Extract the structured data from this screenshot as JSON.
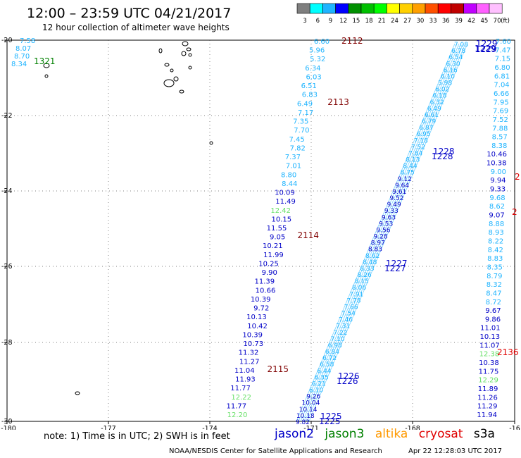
{
  "header": {
    "title": "12:00 – 23:59 UTC 04/21/2017",
    "subtitle": "12 hour collection of altimeter wave heights"
  },
  "colorbar": {
    "unit": "(ft)",
    "ticks": [
      "3",
      "6",
      "9",
      "12",
      "15",
      "18",
      "21",
      "24",
      "27",
      "30",
      "33",
      "36",
      "39",
      "42",
      "45",
      "70"
    ],
    "colors": [
      "#7f7f7f",
      "#00ffff",
      "#1fb4ff",
      "#0000ff",
      "#009000",
      "#00c000",
      "#00ff00",
      "#ffff00",
      "#ffd000",
      "#ffa000",
      "#ff5000",
      "#ff0000",
      "#c00000",
      "#c000ff",
      "#ff60ff",
      "#ffc0ff"
    ]
  },
  "axes": {
    "x_ticks": [
      "-180",
      "-177",
      "-174",
      "-171",
      "-168",
      "-16"
    ],
    "y_ticks": [
      "-20",
      "-22",
      "-24",
      "-26",
      "-28",
      "-30"
    ]
  },
  "colors": {
    "jason2": "#0000c8",
    "jason3": "#008000",
    "altika": "#ff9900",
    "cryosat": "#e00000",
    "s3a": "#000000",
    "cyan": "#1fb4ff",
    "maroon": "#800000",
    "lightgreen": "#66e066"
  },
  "tracks": {
    "track_2112_2115": {
      "labels": [
        {
          "id": "2112",
          "color": "#800000"
        },
        {
          "id": "2113",
          "color": "#800000"
        },
        {
          "id": "2114",
          "color": "#800000"
        },
        {
          "id": "2115",
          "color": "#800000"
        }
      ],
      "values": [
        {
          "v": "6.60",
          "c": "#1fb4ff"
        },
        {
          "v": "5.96",
          "c": "#1fb4ff"
        },
        {
          "v": "5.32",
          "c": "#1fb4ff"
        },
        {
          "v": "6.34",
          "c": "#1fb4ff"
        },
        {
          "v": "6.03",
          "c": "#1fb4ff"
        },
        {
          "v": "6.51",
          "c": "#1fb4ff"
        },
        {
          "v": "6.83",
          "c": "#1fb4ff"
        },
        {
          "v": "6.49",
          "c": "#1fb4ff"
        },
        {
          "v": "7.17",
          "c": "#1fb4ff"
        },
        {
          "v": "7.35",
          "c": "#1fb4ff"
        },
        {
          "v": "7.70",
          "c": "#1fb4ff"
        },
        {
          "v": "7.45",
          "c": "#1fb4ff"
        },
        {
          "v": "7.82",
          "c": "#1fb4ff"
        },
        {
          "v": "7.37",
          "c": "#1fb4ff"
        },
        {
          "v": "7.01",
          "c": "#1fb4ff"
        },
        {
          "v": "8.80",
          "c": "#1fb4ff"
        },
        {
          "v": "8.44",
          "c": "#1fb4ff"
        },
        {
          "v": "10.09",
          "c": "#0000c8"
        },
        {
          "v": "11.49",
          "c": "#0000c8"
        },
        {
          "v": "12.42",
          "c": "#66e066"
        },
        {
          "v": "10.15",
          "c": "#0000c8"
        },
        {
          "v": "11.55",
          "c": "#0000c8"
        },
        {
          "v": "9.05",
          "c": "#0000c8"
        },
        {
          "v": "10.21",
          "c": "#0000c8"
        },
        {
          "v": "11.99",
          "c": "#0000c8"
        },
        {
          "v": "10.25",
          "c": "#0000c8"
        },
        {
          "v": "9.90",
          "c": "#0000c8"
        },
        {
          "v": "11.39",
          "c": "#0000c8"
        },
        {
          "v": "10.66",
          "c": "#0000c8"
        },
        {
          "v": "10.39",
          "c": "#0000c8"
        },
        {
          "v": "9.72",
          "c": "#0000c8"
        },
        {
          "v": "10.13",
          "c": "#0000c8"
        },
        {
          "v": "10.42",
          "c": "#0000c8"
        },
        {
          "v": "10.39",
          "c": "#0000c8"
        },
        {
          "v": "10.73",
          "c": "#0000c8"
        },
        {
          "v": "11.32",
          "c": "#0000c8"
        },
        {
          "v": "11.27",
          "c": "#0000c8"
        },
        {
          "v": "11.04",
          "c": "#0000c8"
        },
        {
          "v": "11.93",
          "c": "#0000c8"
        },
        {
          "v": "11.77",
          "c": "#0000c8"
        },
        {
          "v": "12.22",
          "c": "#66e066"
        },
        {
          "v": "11.77",
          "c": "#0000c8"
        },
        {
          "v": "12.20",
          "c": "#66e066"
        }
      ]
    },
    "track_1229_1225": {
      "labels": [
        "1229",
        "1228",
        "1227",
        "1226",
        "1225"
      ],
      "values": [
        "7.08",
        "6.78",
        "6.54",
        "6.30",
        "6.16",
        "6.10",
        "5.98",
        "6.02",
        "6.18",
        "6.32",
        "6.49",
        "6.61",
        "6.79",
        "6.87",
        "6.95",
        "7.18",
        "7.52",
        "7.84",
        "8.13",
        "8.44",
        "8.75",
        "9.12",
        "9.64",
        "9.61",
        "9.52",
        "9.49",
        "9.33",
        "9.63",
        "9.53",
        "9.56",
        "9.28",
        "8.97",
        "8.83",
        "8.62",
        "8.48",
        "8.33",
        "8.26",
        "8.15",
        "8.06",
        "7.91",
        "7.78",
        "7.66",
        "7.54",
        "7.46",
        "7.31",
        "7.22",
        "7.10",
        "6.98",
        "6.84",
        "6.72",
        "6.58",
        "6.44",
        "6.35",
        "6.21",
        "6.10",
        "9.26",
        "10.04",
        "10.14",
        "10.18",
        "9.82"
      ]
    },
    "track_east": {
      "labels": [
        {
          "id": "1229",
          "color": "#0000c8"
        },
        {
          "id": "2136",
          "color": "#e00000"
        }
      ],
      "values": [
        {
          "v": "7.60",
          "c": "#1fb4ff"
        },
        {
          "v": "7.47",
          "c": "#1fb4ff"
        },
        {
          "v": "7.15",
          "c": "#1fb4ff"
        },
        {
          "v": "6.80",
          "c": "#1fb4ff"
        },
        {
          "v": "6.81",
          "c": "#1fb4ff"
        },
        {
          "v": "7.04",
          "c": "#1fb4ff"
        },
        {
          "v": "6.66",
          "c": "#1fb4ff"
        },
        {
          "v": "7.95",
          "c": "#1fb4ff"
        },
        {
          "v": "7.69",
          "c": "#1fb4ff"
        },
        {
          "v": "7.52",
          "c": "#1fb4ff"
        },
        {
          "v": "7.88",
          "c": "#1fb4ff"
        },
        {
          "v": "8.57",
          "c": "#1fb4ff"
        },
        {
          "v": "8.38",
          "c": "#1fb4ff"
        },
        {
          "v": "10.46",
          "c": "#0000c8"
        },
        {
          "v": "10.38",
          "c": "#0000c8"
        },
        {
          "v": "9.00",
          "c": "#1fb4ff"
        },
        {
          "v": "9.94",
          "c": "#0000c8"
        },
        {
          "v": "9.33",
          "c": "#0000c8"
        },
        {
          "v": "9.68",
          "c": "#1fb4ff"
        },
        {
          "v": "8.62",
          "c": "#1fb4ff"
        },
        {
          "v": "9.07",
          "c": "#0000c8"
        },
        {
          "v": "8.88",
          "c": "#1fb4ff"
        },
        {
          "v": "8.93",
          "c": "#1fb4ff"
        },
        {
          "v": "8.22",
          "c": "#1fb4ff"
        },
        {
          "v": "8.42",
          "c": "#1fb4ff"
        },
        {
          "v": "8.83",
          "c": "#1fb4ff"
        },
        {
          "v": "8.35",
          "c": "#1fb4ff"
        },
        {
          "v": "8.79",
          "c": "#1fb4ff"
        },
        {
          "v": "8.32",
          "c": "#1fb4ff"
        },
        {
          "v": "8.47",
          "c": "#1fb4ff"
        },
        {
          "v": "8.72",
          "c": "#1fb4ff"
        },
        {
          "v": "9.67",
          "c": "#0000c8"
        },
        {
          "v": "9.86",
          "c": "#0000c8"
        },
        {
          "v": "11.01",
          "c": "#0000c8"
        },
        {
          "v": "10.13",
          "c": "#0000c8"
        },
        {
          "v": "11.07",
          "c": "#0000c8"
        },
        {
          "v": "12.38",
          "c": "#66e066"
        },
        {
          "v": "10.38",
          "c": "#0000c8"
        },
        {
          "v": "11.75",
          "c": "#0000c8"
        },
        {
          "v": "12.29",
          "c": "#66e066"
        },
        {
          "v": "11.89",
          "c": "#0000c8"
        },
        {
          "v": "11.26",
          "c": "#0000c8"
        },
        {
          "v": "11.29",
          "c": "#0000c8"
        },
        {
          "v": "11.94",
          "c": "#0000c8"
        }
      ],
      "edge_labels": [
        {
          "v": "2",
          "c": "#e00000"
        },
        {
          "v": "2",
          "c": "#e00000"
        }
      ]
    },
    "track_1321": {
      "label": "1321",
      "values": [
        "7.58",
        "8.07",
        "8.70",
        "8.34"
      ]
    }
  },
  "footer": {
    "note": "note: 1) Time is in UTC; 2) SWH is in feet",
    "satellites": [
      {
        "name": "jason2",
        "color": "#0000c8"
      },
      {
        "name": "jason3",
        "color": "#008000"
      },
      {
        "name": "altika",
        "color": "#ff9900"
      },
      {
        "name": "cryosat",
        "color": "#e00000"
      },
      {
        "name": "s3a",
        "color": "#000000"
      }
    ],
    "credit": "NOAA/NESDIS Center for Satellite Applications and Research",
    "stamp": "Apr 22 12:28:03 UTC 2017"
  }
}
